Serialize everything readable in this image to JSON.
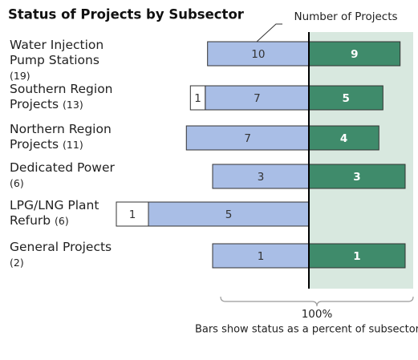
{
  "chart_data": {
    "type": "diverging_bar",
    "title": "Status of Projects by Subsector",
    "axis_label": "Number of Projects",
    "categories": [
      "Water Injection Pump Stations",
      "Southern Region Projects",
      "Northern Region Projects",
      "Dedicated Power",
      "LPG/LNG Plant Refurb",
      "General Projects"
    ],
    "totals": [
      19,
      13,
      11,
      6,
      6,
      2
    ],
    "total_labels": [
      "(19)",
      "(13)",
      "(11)",
      "(6)",
      "(6)",
      "(2)"
    ],
    "series": [
      {
        "color": "#ffffff",
        "side": "left",
        "values": [
          null,
          1,
          null,
          null,
          1,
          null
        ]
      },
      {
        "color": "#a9bee6",
        "side": "left",
        "values": [
          10,
          7,
          7,
          3,
          5,
          1
        ]
      },
      {
        "color": "#3f8b6b",
        "side": "right",
        "values": [
          9,
          5,
          4,
          3,
          null,
          1
        ]
      }
    ],
    "scale": {
      "value": 100,
      "label": "100%"
    },
    "caption": "Bars show status as a percent of subsector"
  }
}
